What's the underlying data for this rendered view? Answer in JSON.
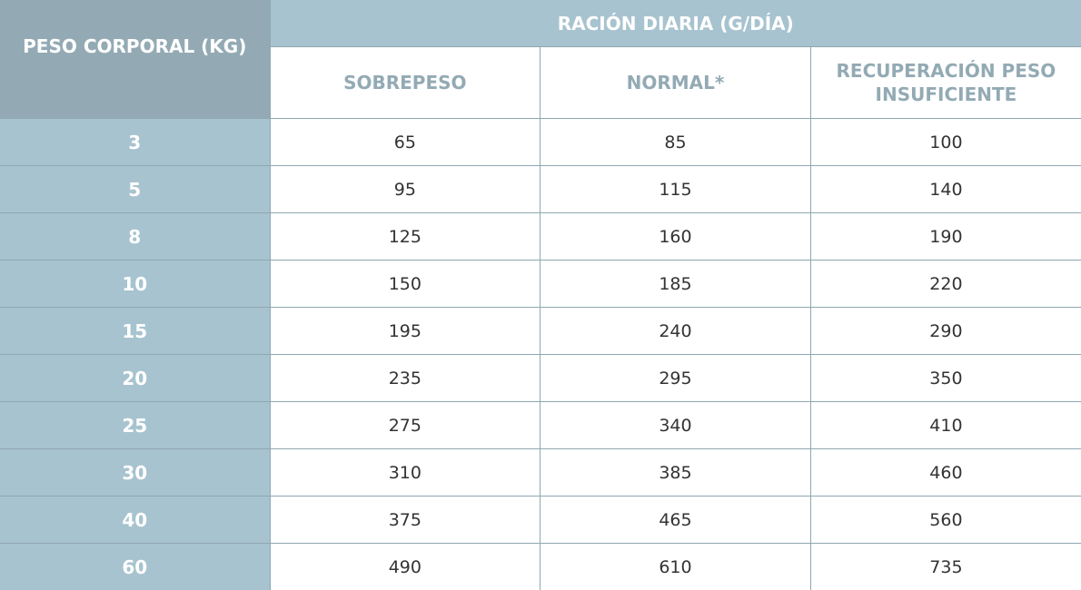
{
  "table": {
    "weight_header": "PESO CORPORAL (KG)",
    "group_header": "RACIÓN DIARIA (G/DÍA)",
    "columns": [
      "SOBREPESO",
      "NORMAL*",
      "RECUPERACIÓN PESO INSUFICIENTE"
    ],
    "rows": [
      {
        "weight": "3",
        "values": [
          "65",
          "85",
          "100"
        ]
      },
      {
        "weight": "5",
        "values": [
          "95",
          "115",
          "140"
        ]
      },
      {
        "weight": "8",
        "values": [
          "125",
          "160",
          "190"
        ]
      },
      {
        "weight": "10",
        "values": [
          "150",
          "185",
          "220"
        ]
      },
      {
        "weight": "15",
        "values": [
          "195",
          "240",
          "290"
        ]
      },
      {
        "weight": "20",
        "values": [
          "235",
          "295",
          "350"
        ]
      },
      {
        "weight": "25",
        "values": [
          "275",
          "340",
          "410"
        ]
      },
      {
        "weight": "30",
        "values": [
          "310",
          "385",
          "460"
        ]
      },
      {
        "weight": "40",
        "values": [
          "375",
          "465",
          "560"
        ]
      },
      {
        "weight": "60",
        "values": [
          "490",
          "610",
          "735"
        ]
      }
    ]
  },
  "colors": {
    "header_dark": "#93aab4",
    "header_light": "#a7c3cf",
    "border": "#8fa7b1",
    "text": "#333333"
  }
}
